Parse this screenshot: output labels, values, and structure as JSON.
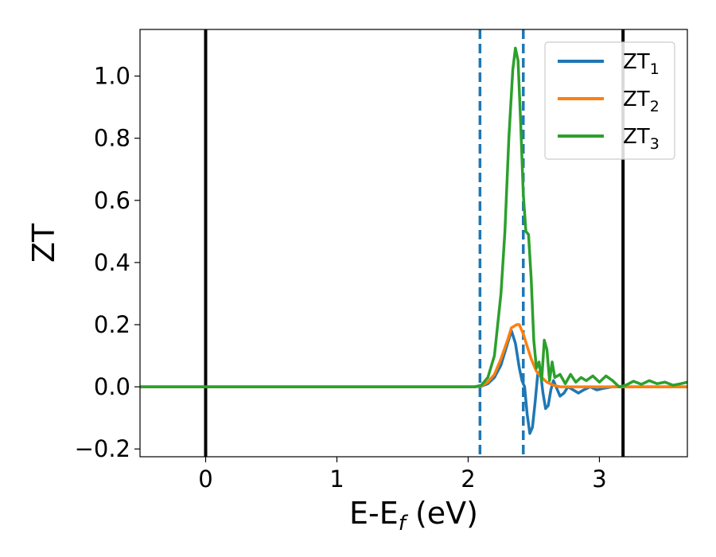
{
  "chart_data": {
    "type": "line",
    "xlabel": "E-E",
    "xlabel_sub": "f",
    "xlabel_unit": " (eV)",
    "ylabel": "ZT",
    "xlim": [
      -0.5,
      3.67
    ],
    "ylim": [
      -0.225,
      1.15
    ],
    "xticks": [
      0,
      1,
      2,
      3
    ],
    "xtick_labels": [
      "0",
      "1",
      "2",
      "3"
    ],
    "yticks": [
      -0.2,
      0.0,
      0.2,
      0.4,
      0.6,
      0.8,
      1.0
    ],
    "ytick_labels": [
      "−0.2",
      "0.0",
      "0.2",
      "0.4",
      "0.6",
      "0.8",
      "1.0"
    ],
    "grid": false,
    "legend_position": "top-right",
    "vlines": [
      {
        "x": 0.0,
        "style": "solid",
        "color": "#000000"
      },
      {
        "x": 3.18,
        "style": "solid",
        "color": "#000000"
      },
      {
        "x": 2.09,
        "style": "dashed",
        "color": "#1f77b4"
      },
      {
        "x": 2.42,
        "style": "dashed",
        "color": "#1f77b4"
      }
    ],
    "series": [
      {
        "name": "ZT",
        "sub": "1",
        "color": "#1f77b4",
        "points": [
          [
            -0.5,
            0
          ],
          [
            2.05,
            0
          ],
          [
            2.1,
            0.002
          ],
          [
            2.15,
            0.01
          ],
          [
            2.2,
            0.03
          ],
          [
            2.25,
            0.07
          ],
          [
            2.3,
            0.14
          ],
          [
            2.33,
            0.18
          ],
          [
            2.36,
            0.14
          ],
          [
            2.39,
            0.06
          ],
          [
            2.41,
            0.02
          ],
          [
            2.43,
            0.0
          ],
          [
            2.45,
            -0.09
          ],
          [
            2.47,
            -0.15
          ],
          [
            2.49,
            -0.13
          ],
          [
            2.51,
            -0.05
          ],
          [
            2.53,
            0.04
          ],
          [
            2.55,
            0.05
          ],
          [
            2.57,
            -0.02
          ],
          [
            2.59,
            -0.07
          ],
          [
            2.61,
            -0.06
          ],
          [
            2.63,
            -0.01
          ],
          [
            2.65,
            0.02
          ],
          [
            2.67,
            0.0
          ],
          [
            2.7,
            -0.03
          ],
          [
            2.73,
            -0.02
          ],
          [
            2.76,
            0.0
          ],
          [
            2.8,
            -0.01
          ],
          [
            2.84,
            -0.02
          ],
          [
            2.88,
            -0.01
          ],
          [
            2.93,
            0.0
          ],
          [
            2.98,
            -0.01
          ],
          [
            3.03,
            -0.005
          ],
          [
            3.1,
            0.0
          ],
          [
            3.2,
            0.0
          ],
          [
            3.3,
            0.0
          ],
          [
            3.67,
            0.0
          ]
        ]
      },
      {
        "name": "ZT",
        "sub": "2",
        "color": "#ff7f0e",
        "points": [
          [
            -0.5,
            0
          ],
          [
            2.05,
            0
          ],
          [
            2.1,
            0.003
          ],
          [
            2.15,
            0.015
          ],
          [
            2.2,
            0.04
          ],
          [
            2.25,
            0.09
          ],
          [
            2.3,
            0.15
          ],
          [
            2.33,
            0.19
          ],
          [
            2.35,
            0.195
          ],
          [
            2.37,
            0.2
          ],
          [
            2.39,
            0.2
          ],
          [
            2.42,
            0.17
          ],
          [
            2.45,
            0.13
          ],
          [
            2.48,
            0.09
          ],
          [
            2.52,
            0.05
          ],
          [
            2.56,
            0.03
          ],
          [
            2.6,
            0.015
          ],
          [
            2.65,
            0.005
          ],
          [
            2.7,
            0.0
          ],
          [
            2.75,
            0.0
          ],
          [
            2.85,
            0.0
          ],
          [
            3.0,
            0.0
          ],
          [
            3.3,
            0.0
          ],
          [
            3.67,
            0.0
          ]
        ]
      },
      {
        "name": "ZT",
        "sub": "3",
        "color": "#2ca02c",
        "points": [
          [
            -0.5,
            0
          ],
          [
            2.05,
            0
          ],
          [
            2.1,
            0.005
          ],
          [
            2.15,
            0.03
          ],
          [
            2.2,
            0.1
          ],
          [
            2.25,
            0.3
          ],
          [
            2.28,
            0.5
          ],
          [
            2.31,
            0.8
          ],
          [
            2.34,
            1.02
          ],
          [
            2.36,
            1.09
          ],
          [
            2.38,
            1.05
          ],
          [
            2.4,
            0.85
          ],
          [
            2.42,
            0.62
          ],
          [
            2.44,
            0.5
          ],
          [
            2.46,
            0.49
          ],
          [
            2.48,
            0.35
          ],
          [
            2.5,
            0.15
          ],
          [
            2.52,
            0.06
          ],
          [
            2.54,
            0.08
          ],
          [
            2.56,
            0.02
          ],
          [
            2.58,
            0.15
          ],
          [
            2.6,
            0.12
          ],
          [
            2.62,
            0.02
          ],
          [
            2.64,
            0.08
          ],
          [
            2.66,
            0.03
          ],
          [
            2.7,
            0.04
          ],
          [
            2.74,
            0.01
          ],
          [
            2.78,
            0.04
          ],
          [
            2.82,
            0.015
          ],
          [
            2.86,
            0.03
          ],
          [
            2.9,
            0.02
          ],
          [
            2.95,
            0.035
          ],
          [
            3.0,
            0.015
          ],
          [
            3.05,
            0.035
          ],
          [
            3.1,
            0.02
          ],
          [
            3.15,
            0.0
          ],
          [
            3.2,
            0.005
          ],
          [
            3.26,
            0.018
          ],
          [
            3.32,
            0.008
          ],
          [
            3.38,
            0.02
          ],
          [
            3.44,
            0.01
          ],
          [
            3.5,
            0.015
          ],
          [
            3.56,
            0.005
          ],
          [
            3.62,
            0.01
          ],
          [
            3.67,
            0.015
          ]
        ]
      }
    ]
  }
}
